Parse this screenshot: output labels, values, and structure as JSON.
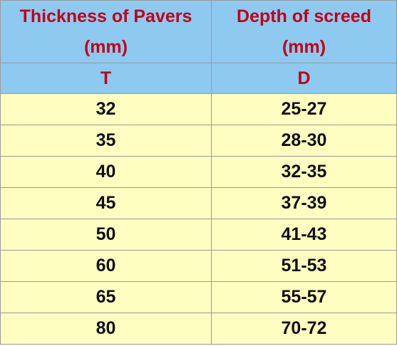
{
  "table": {
    "headers": [
      {
        "line1": "Thickness of Pavers",
        "line2": "(mm)",
        "symbol": "T"
      },
      {
        "line1": "Depth of screed",
        "line2": "(mm)",
        "symbol": "D"
      }
    ],
    "rows": [
      [
        "32",
        "25-27"
      ],
      [
        "35",
        "28-30"
      ],
      [
        "40",
        "32-35"
      ],
      [
        "45",
        "37-39"
      ],
      [
        "50",
        "41-43"
      ],
      [
        "60",
        "51-53"
      ],
      [
        "65",
        "55-57"
      ],
      [
        "80",
        "70-72"
      ]
    ]
  },
  "colors": {
    "header_background": "#8ec9f0",
    "header_text": "#c0001a",
    "body_background": "#fefec0",
    "body_text": "#111111",
    "border": "#9a9a9a"
  }
}
